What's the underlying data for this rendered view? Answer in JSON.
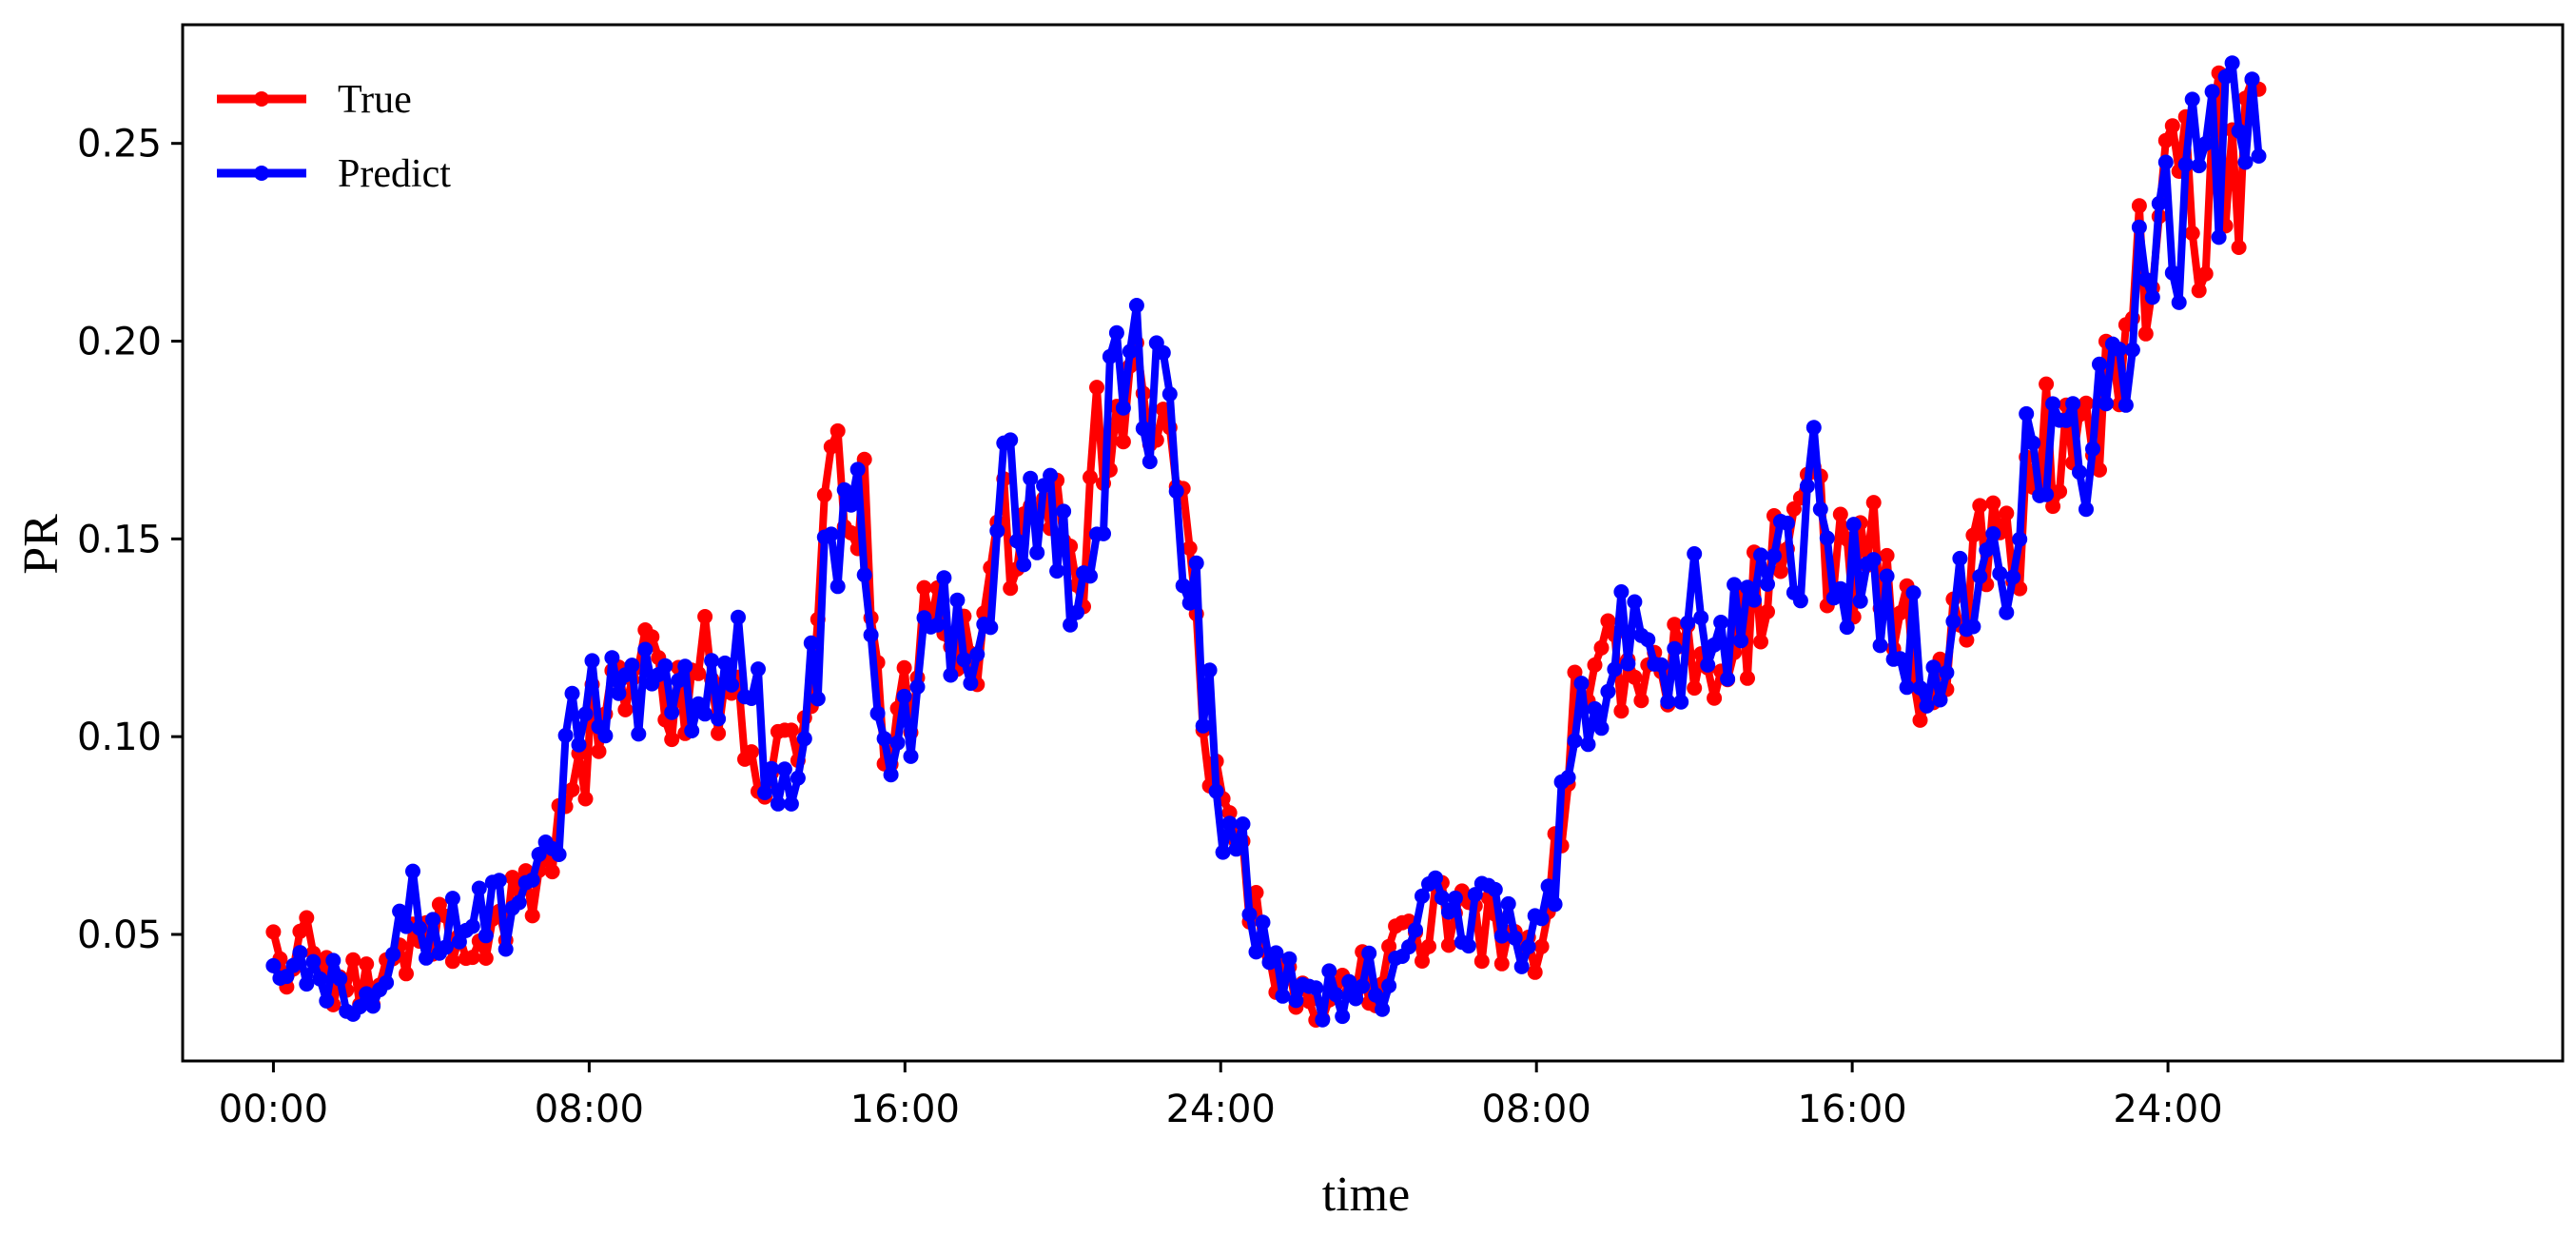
{
  "chart_data": {
    "type": "line",
    "title": "",
    "xlabel": "time",
    "ylabel": "PR",
    "x_tick_labels": [
      "00:00",
      "08:00",
      "16:00",
      "24:00",
      "08:00",
      "16:00",
      "24:00"
    ],
    "y_tick_labels": [
      "0.05",
      "0.10",
      "0.15",
      "0.20",
      "0.25"
    ],
    "y_ticks": [
      0.05,
      0.1,
      0.15,
      0.2,
      0.25
    ],
    "ylim": [
      0.018,
      0.28
    ],
    "x_range_hours": [
      -2.3,
      58.0
    ],
    "legend_position": "upper-left",
    "grid": false,
    "series": [
      {
        "name": "True",
        "color": "#ff0000",
        "keypoints": [
          [
            0,
            0.046
          ],
          [
            0.5,
            0.041
          ],
          [
            1,
            0.048
          ],
          [
            1.5,
            0.04
          ],
          [
            2,
            0.036
          ],
          [
            2.5,
            0.037
          ],
          [
            3,
            0.04
          ],
          [
            3.5,
            0.047
          ],
          [
            4,
            0.05
          ],
          [
            4.5,
            0.049
          ],
          [
            5,
            0.046
          ],
          [
            5.5,
            0.052
          ],
          [
            6,
            0.055
          ],
          [
            6.5,
            0.06
          ],
          [
            7,
            0.07
          ],
          [
            7.5,
            0.092
          ],
          [
            8,
            0.098
          ],
          [
            8.5,
            0.112
          ],
          [
            9,
            0.112
          ],
          [
            9.5,
            0.116
          ],
          [
            10,
            0.104
          ],
          [
            10.5,
            0.112
          ],
          [
            11,
            0.118
          ],
          [
            11.5,
            0.112
          ],
          [
            12,
            0.095
          ],
          [
            12.5,
            0.083
          ],
          [
            13,
            0.095
          ],
          [
            13.5,
            0.11
          ],
          [
            14,
            0.152
          ],
          [
            14.5,
            0.17
          ],
          [
            15,
            0.15
          ],
          [
            15.5,
            0.1
          ],
          [
            16,
            0.106
          ],
          [
            16.5,
            0.122
          ],
          [
            17,
            0.128
          ],
          [
            17.5,
            0.132
          ],
          [
            18,
            0.12
          ],
          [
            18.5,
            0.148
          ],
          [
            19,
            0.148
          ],
          [
            19.5,
            0.15
          ],
          [
            20,
            0.15
          ],
          [
            20.5,
            0.147
          ],
          [
            21,
            0.18
          ],
          [
            21.5,
            0.193
          ],
          [
            22,
            0.19
          ],
          [
            22.5,
            0.188
          ],
          [
            23,
            0.155
          ],
          [
            23.5,
            0.12
          ],
          [
            24,
            0.076
          ],
          [
            24.5,
            0.068
          ],
          [
            25,
            0.052
          ],
          [
            25.5,
            0.038
          ],
          [
            26,
            0.031
          ],
          [
            26.5,
            0.033
          ],
          [
            27,
            0.034
          ],
          [
            27.5,
            0.04
          ],
          [
            28,
            0.036
          ],
          [
            28.5,
            0.046
          ],
          [
            29,
            0.05
          ],
          [
            29.5,
            0.058
          ],
          [
            30,
            0.053
          ],
          [
            30.5,
            0.052
          ],
          [
            31,
            0.051
          ],
          [
            31.5,
            0.05
          ],
          [
            32,
            0.047
          ],
          [
            32.5,
            0.068
          ],
          [
            33,
            0.105
          ],
          [
            33.5,
            0.112
          ],
          [
            34,
            0.118
          ],
          [
            34.5,
            0.125
          ],
          [
            35,
            0.12
          ],
          [
            35.5,
            0.115
          ],
          [
            36,
            0.128
          ],
          [
            36.5,
            0.118
          ],
          [
            37,
            0.122
          ],
          [
            37.5,
            0.132
          ],
          [
            38,
            0.14
          ],
          [
            38.5,
            0.143
          ],
          [
            39,
            0.158
          ],
          [
            39.5,
            0.15
          ],
          [
            40,
            0.14
          ],
          [
            40.5,
            0.145
          ],
          [
            41,
            0.128
          ],
          [
            41.5,
            0.122
          ],
          [
            42,
            0.114
          ],
          [
            42.5,
            0.13
          ],
          [
            43,
            0.14
          ],
          [
            43.5,
            0.15
          ],
          [
            44,
            0.15
          ],
          [
            44.5,
            0.16
          ],
          [
            45,
            0.178
          ],
          [
            45.5,
            0.175
          ],
          [
            46,
            0.175
          ],
          [
            46.5,
            0.18
          ],
          [
            47,
            0.2
          ],
          [
            47.5,
            0.22
          ],
          [
            48,
            0.24
          ],
          [
            48.5,
            0.235
          ],
          [
            49,
            0.245
          ],
          [
            49.5,
            0.242
          ],
          [
            50,
            0.255
          ],
          [
            50.3,
            0.264
          ]
        ]
      },
      {
        "name": "Predict",
        "color": "#0000ff",
        "keypoints": [
          [
            0,
            0.05
          ],
          [
            0.5,
            0.043
          ],
          [
            1,
            0.044
          ],
          [
            1.5,
            0.038
          ],
          [
            2,
            0.036
          ],
          [
            2.5,
            0.037
          ],
          [
            3,
            0.042
          ],
          [
            3.5,
            0.057
          ],
          [
            4,
            0.052
          ],
          [
            4.5,
            0.05
          ],
          [
            5,
            0.052
          ],
          [
            5.5,
            0.055
          ],
          [
            6,
            0.056
          ],
          [
            6.5,
            0.058
          ],
          [
            7,
            0.068
          ],
          [
            7.5,
            0.098
          ],
          [
            8,
            0.105
          ],
          [
            8.5,
            0.118
          ],
          [
            9,
            0.118
          ],
          [
            9.5,
            0.114
          ],
          [
            10,
            0.103
          ],
          [
            10.5,
            0.113
          ],
          [
            11,
            0.122
          ],
          [
            11.5,
            0.11
          ],
          [
            12,
            0.122
          ],
          [
            12.5,
            0.09
          ],
          [
            13,
            0.09
          ],
          [
            13.5,
            0.1
          ],
          [
            14,
            0.14
          ],
          [
            14.5,
            0.162
          ],
          [
            15,
            0.145
          ],
          [
            15.5,
            0.102
          ],
          [
            16,
            0.1
          ],
          [
            16.5,
            0.118
          ],
          [
            17,
            0.128
          ],
          [
            17.5,
            0.135
          ],
          [
            18,
            0.118
          ],
          [
            18.5,
            0.16
          ],
          [
            19,
            0.15
          ],
          [
            19.5,
            0.152
          ],
          [
            20,
            0.148
          ],
          [
            20.5,
            0.145
          ],
          [
            21,
            0.17
          ],
          [
            21.5,
            0.186
          ],
          [
            22,
            0.19
          ],
          [
            22.5,
            0.186
          ],
          [
            23,
            0.157
          ],
          [
            23.5,
            0.12
          ],
          [
            24,
            0.084
          ],
          [
            24.5,
            0.07
          ],
          [
            25,
            0.05
          ],
          [
            25.5,
            0.04
          ],
          [
            26,
            0.033
          ],
          [
            26.5,
            0.034
          ],
          [
            27,
            0.036
          ],
          [
            27.5,
            0.04
          ],
          [
            28,
            0.037
          ],
          [
            28.5,
            0.046
          ],
          [
            29,
            0.052
          ],
          [
            29.5,
            0.057
          ],
          [
            30,
            0.053
          ],
          [
            30.5,
            0.056
          ],
          [
            31,
            0.052
          ],
          [
            31.5,
            0.049
          ],
          [
            32,
            0.048
          ],
          [
            32.5,
            0.066
          ],
          [
            33,
            0.106
          ],
          [
            33.5,
            0.115
          ],
          [
            34,
            0.12
          ],
          [
            34.5,
            0.13
          ],
          [
            35,
            0.118
          ],
          [
            35.5,
            0.118
          ],
          [
            36,
            0.132
          ],
          [
            36.5,
            0.12
          ],
          [
            37,
            0.122
          ],
          [
            37.5,
            0.135
          ],
          [
            38,
            0.142
          ],
          [
            38.5,
            0.145
          ],
          [
            39,
            0.16
          ],
          [
            39.5,
            0.152
          ],
          [
            40,
            0.143
          ],
          [
            40.5,
            0.145
          ],
          [
            41,
            0.128
          ],
          [
            41.5,
            0.122
          ],
          [
            42,
            0.115
          ],
          [
            42.5,
            0.13
          ],
          [
            43,
            0.138
          ],
          [
            43.5,
            0.146
          ],
          [
            44,
            0.15
          ],
          [
            44.5,
            0.165
          ],
          [
            45,
            0.18
          ],
          [
            45.5,
            0.172
          ],
          [
            46,
            0.176
          ],
          [
            46.5,
            0.178
          ],
          [
            47,
            0.198
          ],
          [
            47.5,
            0.222
          ],
          [
            48,
            0.236
          ],
          [
            48.5,
            0.234
          ],
          [
            49,
            0.24
          ],
          [
            49.5,
            0.242
          ],
          [
            50,
            0.248
          ],
          [
            50.3,
            0.266
          ]
        ]
      }
    ]
  }
}
